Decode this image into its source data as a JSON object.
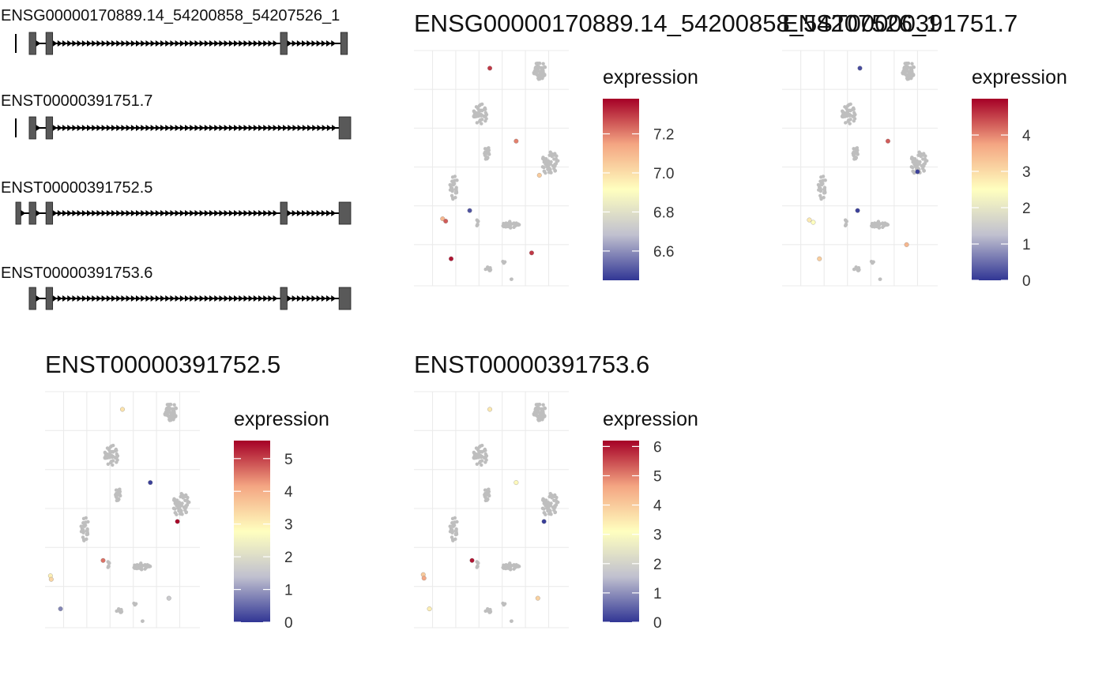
{
  "colors": {
    "background": "#ffffff",
    "grid": "#ebebeb",
    "cell_grey": "#bebebe",
    "exon_fill": "#595959",
    "intron_line": "#000000",
    "scale_low": "#313695",
    "scale_mid_low": "#c0c0cf",
    "scale_mid": "#ffffbf",
    "scale_mid_high": "#f4a582",
    "scale_high": "#a50026"
  },
  "chart_data": [
    {
      "type": "gene_structure",
      "tracks": [
        {
          "label": "ENSG00000170889.14_54200858_54207526_1",
          "exons": [
            [
              0.04,
              0.06
            ],
            [
              0.09,
              0.11
            ],
            [
              0.79,
              0.81
            ],
            [
              0.97,
              0.99
            ]
          ],
          "start_line": true
        },
        {
          "label": "ENST00000391751.7",
          "exons": [
            [
              0.04,
              0.06
            ],
            [
              0.09,
              0.11
            ],
            [
              0.965,
              1.0
            ]
          ],
          "start_line": true
        },
        {
          "label": "ENST00000391752.5",
          "exons": [
            [
              0.0,
              0.015
            ],
            [
              0.04,
              0.06
            ],
            [
              0.09,
              0.11
            ],
            [
              0.79,
              0.81
            ],
            [
              0.965,
              1.0
            ]
          ],
          "start_line": false
        },
        {
          "label": "ENST00000391753.6",
          "exons": [
            [
              0.04,
              0.06
            ],
            [
              0.09,
              0.11
            ],
            [
              0.79,
              0.81
            ],
            [
              0.965,
              1.0
            ]
          ],
          "start_line": false
        }
      ]
    },
    {
      "type": "scatter",
      "title": "ENSG00000170889.14_54200858_54207526_1",
      "legend_title": "expression",
      "color_range": [
        6.45,
        7.38
      ],
      "color_ticks": [
        "6.6",
        "6.8",
        "7.0",
        "7.2"
      ],
      "color_tick_values": [
        6.6,
        6.8,
        7.0,
        7.2
      ],
      "xlim": [
        -10,
        10
      ],
      "ylim": [
        -10,
        10
      ],
      "expressed": [
        {
          "x": -0.2,
          "y": 8.5,
          "v": 7.3
        },
        {
          "x": 3.2,
          "y": 2.3,
          "v": 7.2
        },
        {
          "x": 6.2,
          "y": -0.6,
          "v": 7.05
        },
        {
          "x": -6.3,
          "y": -4.3,
          "v": 7.1
        },
        {
          "x": -5.9,
          "y": -4.5,
          "v": 7.25
        },
        {
          "x": -2.8,
          "y": -3.6,
          "v": 6.5
        },
        {
          "x": 5.2,
          "y": -7.2,
          "v": 7.3
        },
        {
          "x": -5.2,
          "y": -7.7,
          "v": 7.35
        }
      ]
    },
    {
      "type": "scatter",
      "title": "ENST00000391751.7",
      "legend_title": "expression",
      "color_range": [
        0,
        5
      ],
      "color_ticks": [
        "0",
        "1",
        "2",
        "3",
        "4"
      ],
      "color_tick_values": [
        0,
        1,
        2,
        3,
        4
      ],
      "xlim": [
        -10,
        10
      ],
      "ylim": [
        -10,
        10
      ],
      "expressed": [
        {
          "x": 0.0,
          "y": 8.5,
          "v": 0.2
        },
        {
          "x": 3.6,
          "y": 2.3,
          "v": 4.3
        },
        {
          "x": 7.4,
          "y": -0.3,
          "v": 0.1
        },
        {
          "x": -0.3,
          "y": -3.6,
          "v": 0.1
        },
        {
          "x": -6.5,
          "y": -4.4,
          "v": 2.8
        },
        {
          "x": -6.0,
          "y": -4.6,
          "v": 2.5
        },
        {
          "x": -5.2,
          "y": -7.7,
          "v": 3.2
        },
        {
          "x": 6.0,
          "y": -6.5,
          "v": 3.5
        }
      ]
    },
    {
      "type": "scatter",
      "title": "ENST00000391752.5",
      "legend_title": "expression",
      "color_range": [
        0,
        5.55
      ],
      "color_ticks": [
        "0",
        "1",
        "2",
        "3",
        "4",
        "5"
      ],
      "color_tick_values": [
        0,
        1,
        2,
        3,
        4,
        5
      ],
      "xlim": [
        -10,
        10
      ],
      "ylim": [
        -10,
        10
      ],
      "expressed": [
        {
          "x": 0.0,
          "y": 8.5,
          "v": 3.2
        },
        {
          "x": 3.6,
          "y": 2.3,
          "v": 0.1
        },
        {
          "x": 7.1,
          "y": -1.0,
          "v": 5.5
        },
        {
          "x": -2.5,
          "y": -4.3,
          "v": 4.6
        },
        {
          "x": -9.3,
          "y": -5.6,
          "v": 3.0
        },
        {
          "x": -9.2,
          "y": -5.9,
          "v": 3.4
        },
        {
          "x": -8.0,
          "y": -8.4,
          "v": 0.8
        },
        {
          "x": 6.0,
          "y": -7.5,
          "v": 1.6
        }
      ]
    },
    {
      "type": "scatter",
      "title": "ENST00000391753.6",
      "legend_title": "expression",
      "color_range": [
        0,
        6.2
      ],
      "color_ticks": [
        "0",
        "1",
        "2",
        "3",
        "4",
        "5",
        "6"
      ],
      "color_tick_values": [
        0,
        1,
        2,
        3,
        4,
        5,
        6
      ],
      "xlim": [
        -10,
        10
      ],
      "ylim": [
        -10,
        10
      ],
      "expressed": [
        {
          "x": -0.2,
          "y": 8.5,
          "v": 3.5
        },
        {
          "x": 3.2,
          "y": 2.3,
          "v": 3.2
        },
        {
          "x": 6.8,
          "y": -1.0,
          "v": 0.1
        },
        {
          "x": -2.5,
          "y": -4.3,
          "v": 6.0
        },
        {
          "x": -8.8,
          "y": -5.5,
          "v": 4.0
        },
        {
          "x": -8.7,
          "y": -5.8,
          "v": 4.6
        },
        {
          "x": -8.0,
          "y": -8.4,
          "v": 3.4
        },
        {
          "x": 6.0,
          "y": -7.5,
          "v": 3.9
        }
      ]
    }
  ]
}
